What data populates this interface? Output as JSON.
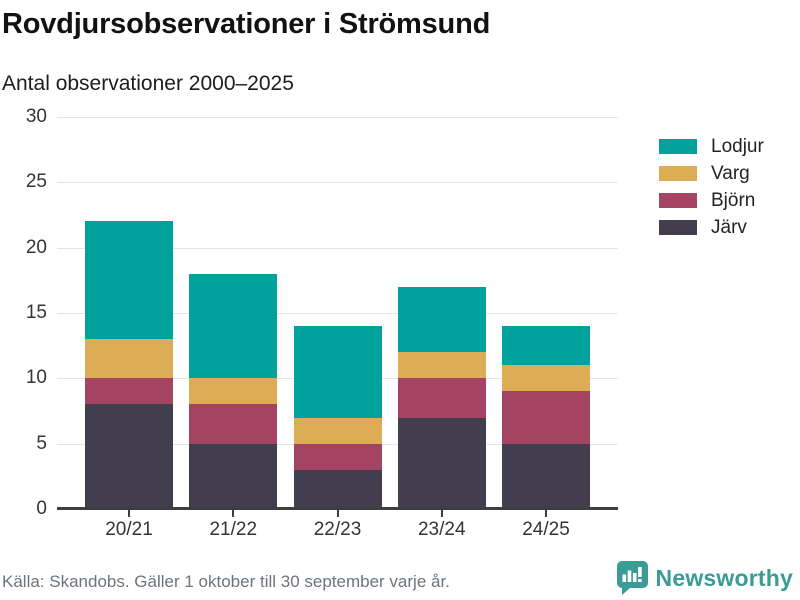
{
  "header": {
    "title": "Rovdjursobservationer i Strömsund",
    "subtitle": "Antal observationer 2000–2025"
  },
  "chart_data": {
    "type": "bar",
    "stacked": true,
    "title": "Rovdjursobservationer i Strömsund",
    "subtitle": "Antal observationer 2000–2025",
    "categories": [
      "20/21",
      "21/22",
      "22/23",
      "23/24",
      "24/25"
    ],
    "series": [
      {
        "name": "Järv",
        "color": "#433e4d",
        "values": [
          8,
          5,
          3,
          7,
          5
        ]
      },
      {
        "name": "Björn",
        "color": "#a54363",
        "values": [
          2,
          3,
          2,
          3,
          4
        ]
      },
      {
        "name": "Varg",
        "color": "#dcad55",
        "values": [
          3,
          2,
          2,
          2,
          2
        ]
      },
      {
        "name": "Lodjur",
        "color": "#00a29b",
        "values": [
          9,
          8,
          7,
          5,
          3
        ]
      }
    ],
    "totals": [
      22,
      18,
      14,
      17,
      14
    ],
    "legend_order": [
      "Lodjur",
      "Varg",
      "Björn",
      "Järv"
    ],
    "legend_position": "right",
    "y_ticks": [
      0,
      5,
      10,
      15,
      20,
      25,
      30
    ],
    "ylim": [
      0,
      30
    ],
    "grid": "horizontal",
    "xlabel": "",
    "ylabel": ""
  },
  "footer": {
    "source": "Källa: Skandobs. Gäller 1 oktober till 30 september varje år.",
    "brand": "Newsworthy",
    "brand_color": "#3a9c94"
  }
}
